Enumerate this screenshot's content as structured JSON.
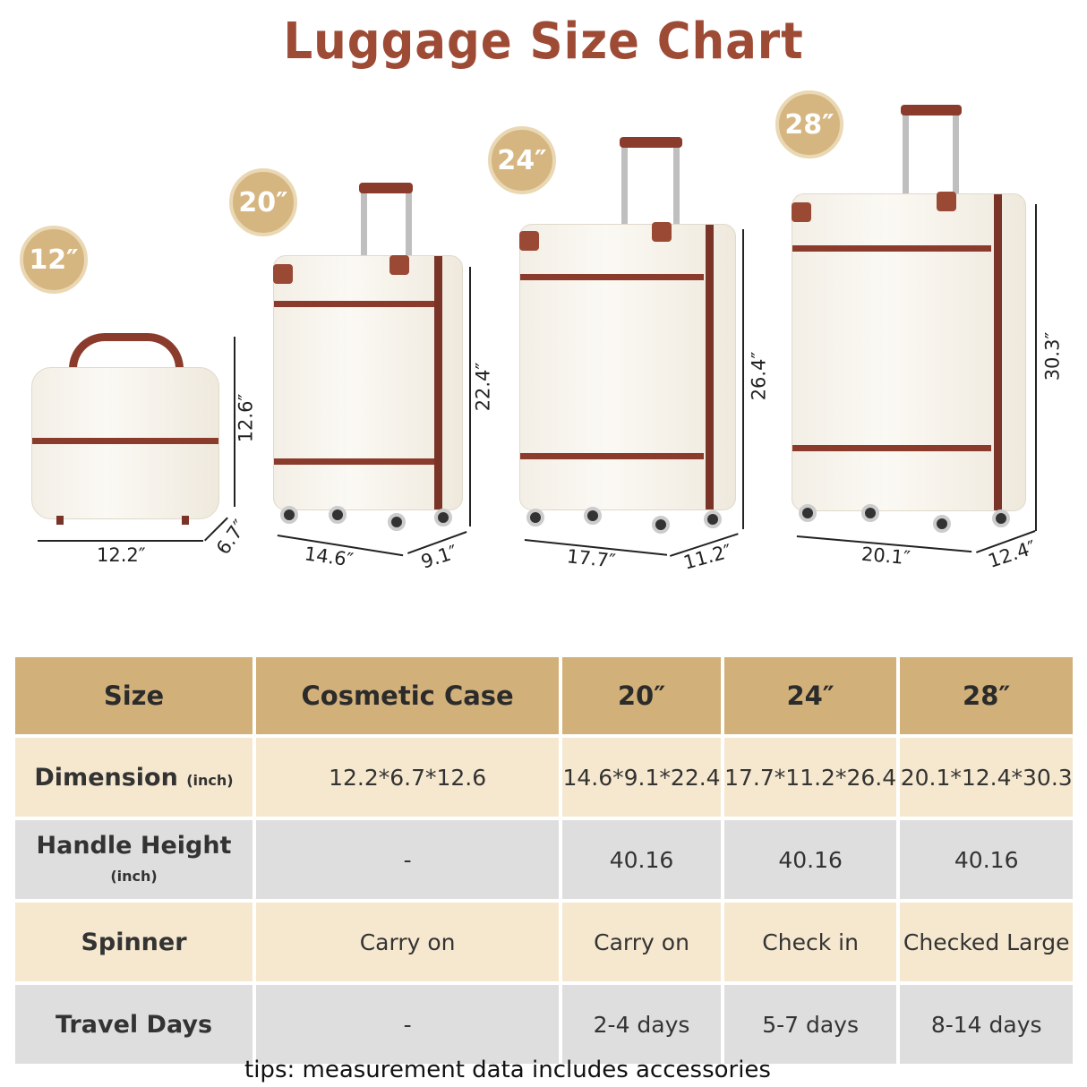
{
  "title": "Luggage Size Chart",
  "colors": {
    "title": "#9e4b35",
    "badge": "#d6b680",
    "header": "#d1b07a",
    "cream_row": "#f6e8cf",
    "gray_row": "#dedede"
  },
  "suitcases": [
    {
      "badge": "12″",
      "width": "12.2″",
      "depth": "6.7″",
      "height": "12.6″"
    },
    {
      "badge": "20″",
      "width": "14.6″",
      "depth": "9.1″",
      "height": "22.4″"
    },
    {
      "badge": "24″",
      "width": "17.7″",
      "depth": "11.2″",
      "height": "26.4″"
    },
    {
      "badge": "28″",
      "width": "20.1″",
      "depth": "12.4″",
      "height": "30.3″"
    }
  ],
  "table": {
    "header": [
      "Size",
      "Cosmetic Case",
      "20″",
      "24″",
      "28″"
    ],
    "rows": [
      {
        "label": "Dimension",
        "unit": "(inch)",
        "values": [
          "12.2*6.7*12.6",
          "14.6*9.1*22.4",
          "17.7*11.2*26.4",
          "20.1*12.4*30.3"
        ]
      },
      {
        "label": "Handle Height",
        "unit": "(inch)",
        "values": [
          "-",
          "40.16",
          "40.16",
          "40.16"
        ]
      },
      {
        "label": "Spinner",
        "unit": "",
        "values": [
          "Carry on",
          "Carry on",
          "Check in",
          "Checked Large"
        ]
      },
      {
        "label": "Travel Days",
        "unit": "",
        "values": [
          "-",
          "2-4 days",
          "5-7 days",
          "8-14 days"
        ]
      }
    ]
  },
  "tips": "tips: measurement data includes accessories"
}
